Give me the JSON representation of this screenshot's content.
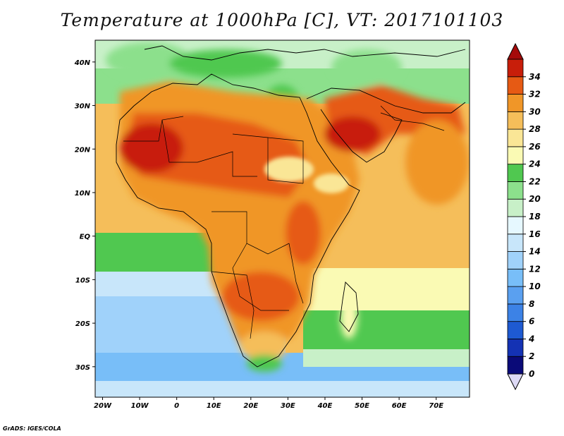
{
  "title": "Temperature at 1000hPa [C], VT: 2017101103",
  "credit": "GrADS: IGES/COLA",
  "axes": {
    "lat_labels": [
      "40N",
      "30N",
      "20N",
      "10N",
      "EQ",
      "10S",
      "20S",
      "30S"
    ],
    "lat_values": [
      40,
      30,
      20,
      10,
      0,
      -10,
      -20,
      -30
    ],
    "lon_labels": [
      "20W",
      "10W",
      "0",
      "10E",
      "20E",
      "30E",
      "40E",
      "50E",
      "60E",
      "70E"
    ],
    "lon_values": [
      -20,
      -10,
      0,
      10,
      20,
      30,
      40,
      50,
      60,
      70
    ],
    "lon_range": [
      -22,
      79
    ],
    "lat_range": [
      -37,
      45
    ]
  },
  "colorbar": {
    "labels": [
      "0",
      "2",
      "4",
      "6",
      "8",
      "10",
      "12",
      "14",
      "16",
      "18",
      "20",
      "22",
      "24",
      "26",
      "28",
      "30",
      "32",
      "34"
    ],
    "colors": [
      "#0a0a78",
      "#1432b4",
      "#1e5ad2",
      "#3c82e6",
      "#5aa0f0",
      "#78bef8",
      "#a0d2fa",
      "#c8e6fa",
      "#e6f8ff",
      "#c8f0c8",
      "#8ce08c",
      "#50c850",
      "#fafab4",
      "#fae696",
      "#f5be5a",
      "#f09628",
      "#e65a14",
      "#c81e0a"
    ],
    "under_color": "#ddd9f5",
    "over_color": "#a50a0a"
  },
  "map": {
    "ocean_north_color": "#78be78",
    "ocean_tropical_color": "#f5be5a",
    "ocean_south_color": "#a0d2fa",
    "land_hot_color": "#e65a14",
    "border_color": "#000000"
  }
}
